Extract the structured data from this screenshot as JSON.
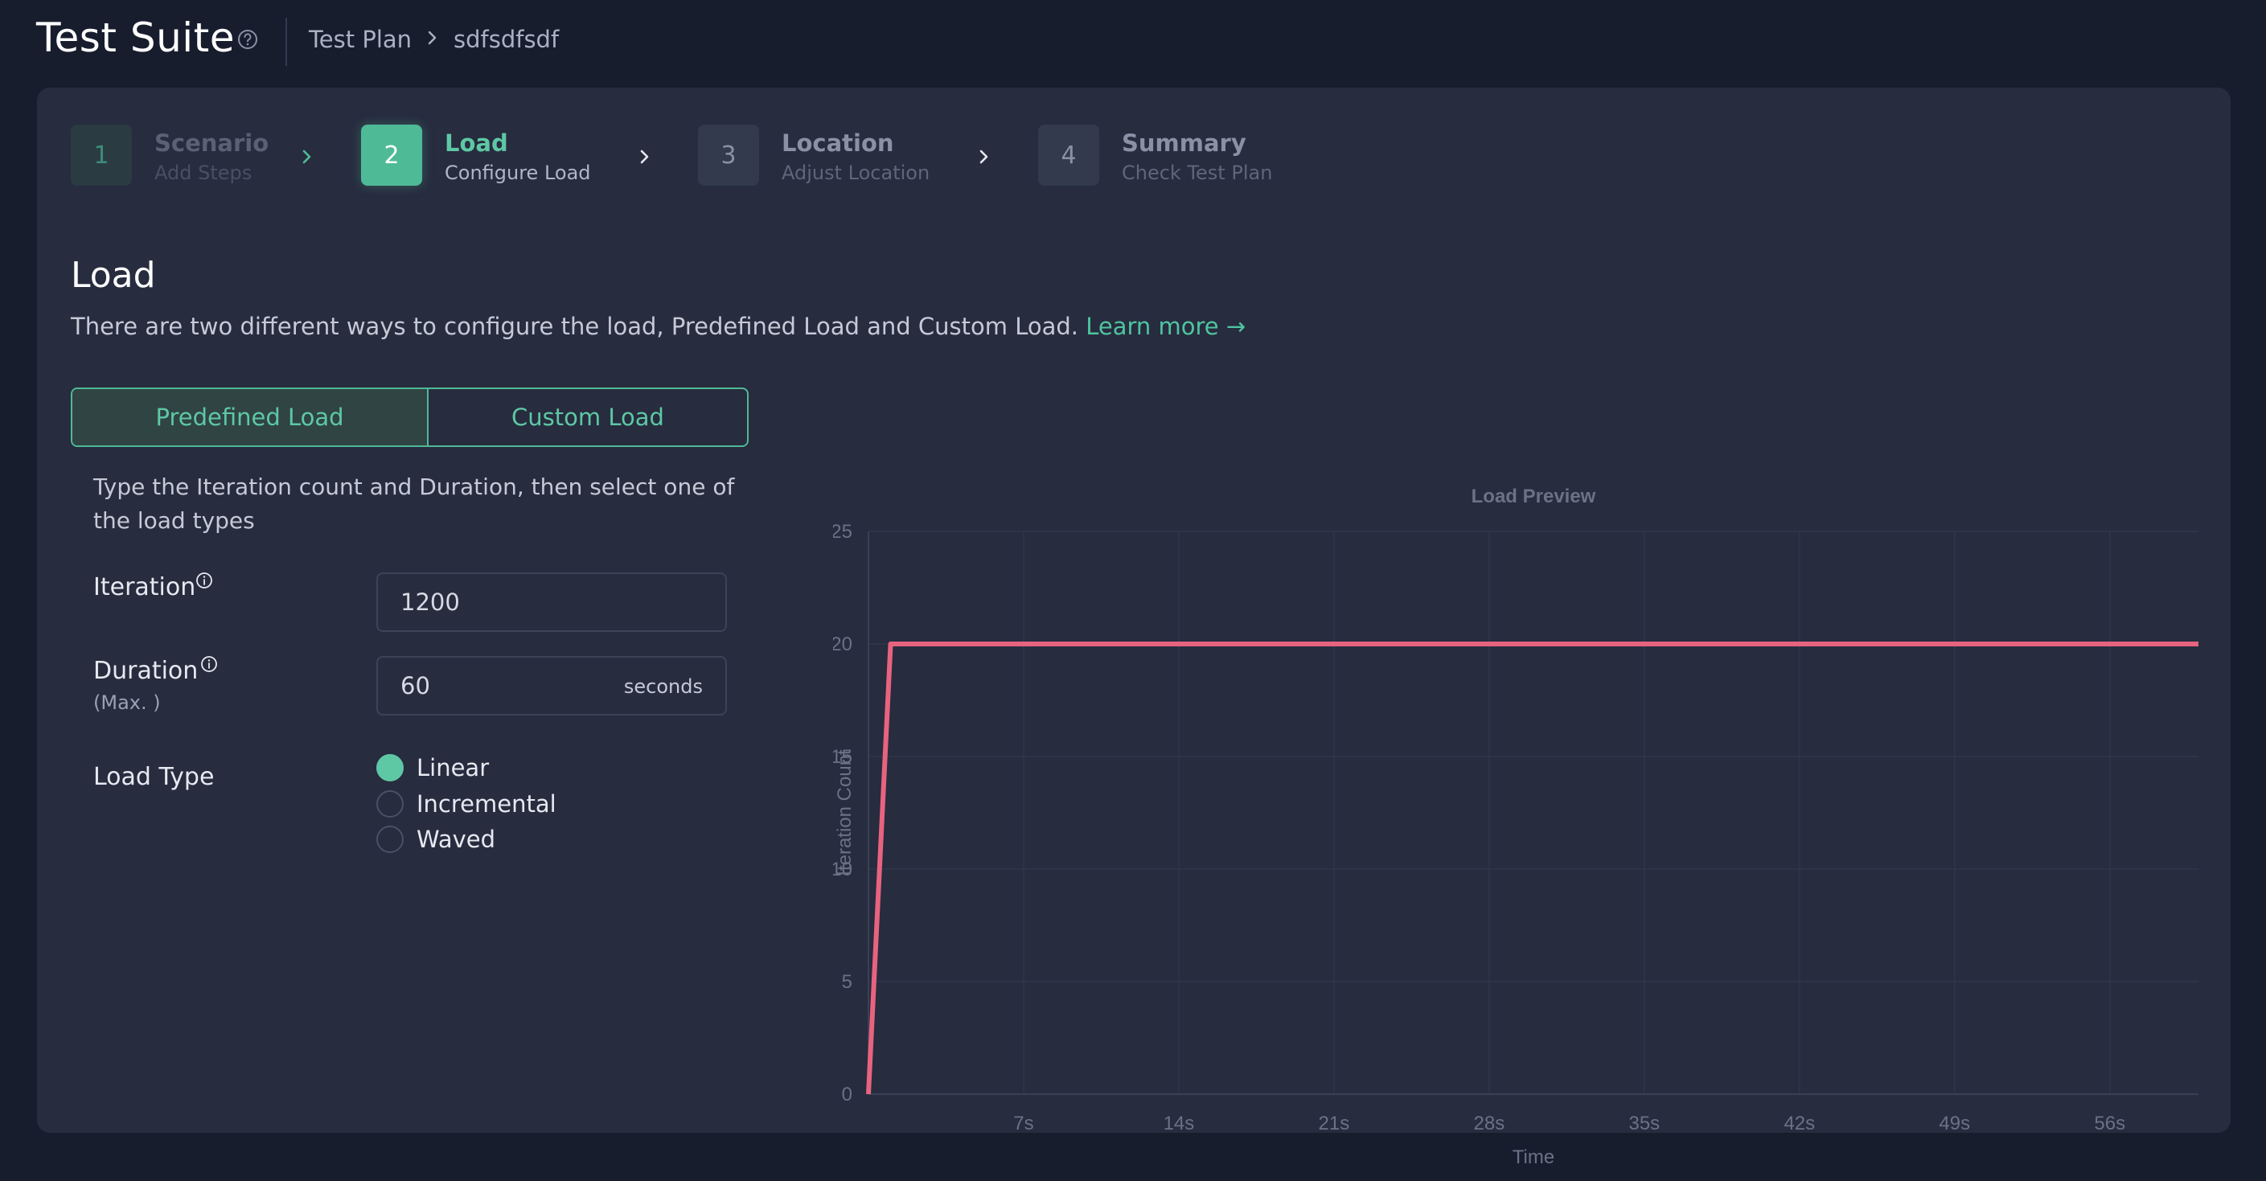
{
  "header": {
    "title": "Test Suite",
    "breadcrumb": [
      "Test Plan",
      "sdfsdfsdf"
    ]
  },
  "steps": [
    {
      "number": "1",
      "title": "Scenario",
      "subtitle": "Add Steps",
      "state": "done"
    },
    {
      "number": "2",
      "title": "Load",
      "subtitle": "Configure Load",
      "state": "active"
    },
    {
      "number": "3",
      "title": "Location",
      "subtitle": "Adjust Location",
      "state": "upcoming"
    },
    {
      "number": "4",
      "title": "Summary",
      "subtitle": "Check Test Plan",
      "state": "upcoming"
    }
  ],
  "section": {
    "title": "Load",
    "description": "There are two different ways to configure the load, Predefined Load and Custom Load.",
    "learn_more": "Learn more →"
  },
  "load_toggle": {
    "options": [
      "Predefined Load",
      "Custom Load"
    ],
    "selected": "Predefined Load"
  },
  "form": {
    "hint": "Type the Iteration count and Duration, then select one of the load types",
    "iteration": {
      "label": "Iteration",
      "value": "1200"
    },
    "duration": {
      "label": "Duration",
      "sublabel": "(Max. )",
      "value": "60",
      "unit": "seconds"
    },
    "load_type": {
      "label": "Load Type",
      "options": [
        "Linear",
        "Incremental",
        "Waved"
      ],
      "selected": "Linear"
    }
  },
  "colors": {
    "accent": "#4fba96",
    "series": "#e8637f",
    "background": "#181d2e",
    "card": "#272c3f"
  },
  "icons": {
    "help": "help-circle-icon",
    "info": "info-icon",
    "chevron": "chevron-right-icon"
  },
  "chart_data": {
    "type": "line",
    "title": "Load Preview",
    "xlabel": "Time",
    "ylabel": "Iteration Count",
    "xlim": [
      0,
      60
    ],
    "ylim": [
      0,
      25
    ],
    "x_ticks": [
      7,
      14,
      21,
      28,
      35,
      42,
      49,
      56
    ],
    "x_tick_labels": [
      "7s",
      "14s",
      "21s",
      "28s",
      "35s",
      "42s",
      "49s",
      "56s"
    ],
    "y_ticks": [
      0,
      5,
      10,
      15,
      20,
      25
    ],
    "y_tick_labels": [
      "0",
      "5",
      "10",
      "15",
      "20",
      "25"
    ],
    "grid": true,
    "series": [
      {
        "x": [
          0,
          1,
          60
        ],
        "y": [
          0,
          20,
          20
        ]
      }
    ]
  }
}
